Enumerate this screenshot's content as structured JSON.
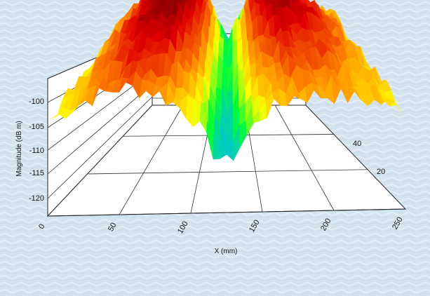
{
  "chart_data": {
    "type": "surface3d",
    "title": "",
    "xlabel": "X (mm)",
    "ylabel": "",
    "zlabel": "Magnitude (dB m)",
    "x_ticks": [
      "0",
      "50",
      "100",
      "150",
      "200",
      "250"
    ],
    "y_ticks": [
      "20",
      "40"
    ],
    "z_ticks": [
      "-100",
      "-105",
      "-110",
      "-115",
      "-120"
    ],
    "xlim": [
      0,
      250
    ],
    "zlim": [
      -123,
      -95
    ],
    "grid": true,
    "colormap": [
      "#00b4ff",
      "#00ff33",
      "#ffff00",
      "#ff8a00",
      "#e00000",
      "#6a0000"
    ],
    "surface_profile": {
      "x": [
        0,
        25,
        50,
        75,
        100,
        115,
        125,
        135,
        150,
        175,
        200,
        225,
        250
      ],
      "ridge_z": [
        -107,
        -101,
        -97,
        -96.5,
        -101,
        -109,
        -113,
        -108,
        -101,
        -97.5,
        -99,
        -102,
        -106
      ],
      "front_z": [
        -108,
        -105,
        -103,
        -104,
        -108,
        -114,
        -116,
        -113,
        -108,
        -105,
        -105,
        -106,
        -107
      ]
    }
  },
  "background_color": "#d6e6f0"
}
